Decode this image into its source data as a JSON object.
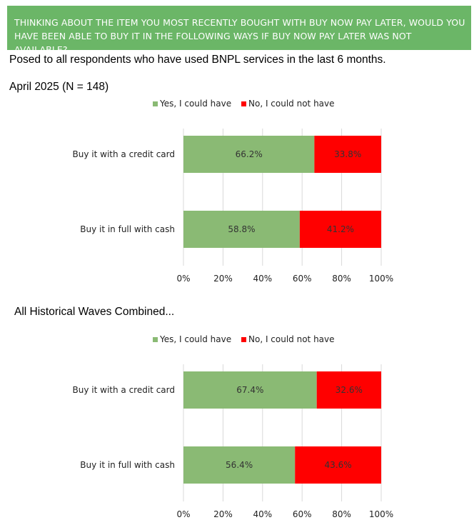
{
  "banner": {
    "text": "THINKING ABOUT THE ITEM YOU MOST RECENTLY BOUGHT WITH BUY NOW PAY LATER, WOULD YOU HAVE BEEN ABLE TO BUY IT IN THE FOLLOWING WAYS IF BUY NOW PAY LATER WAS NOT AVAILABLE?"
  },
  "subtitle": "Posed to all respondents who have used BNPL services in the last 6 months.",
  "colors": {
    "banner": "#6bb667",
    "yes": "#8aba74",
    "no": "#ff0000",
    "grid": "#d9d9d9"
  },
  "chart_data": [
    {
      "type": "bar",
      "orientation": "horizontal",
      "stacked": true,
      "title": "April 2025 (N = 148)",
      "categories": [
        "Buy it with a credit card",
        "Buy it in full with cash"
      ],
      "series": [
        {
          "name": "Yes, I could have",
          "values": [
            66.2,
            58.8
          ],
          "labels": [
            "66.2%",
            "58.8%"
          ],
          "color": "#8aba74"
        },
        {
          "name": "No, I could not have",
          "values": [
            33.8,
            41.2
          ],
          "labels": [
            "33.8%",
            "41.2%"
          ],
          "color": "#ff0000"
        }
      ],
      "xlim": [
        0,
        100
      ],
      "xticks": [
        "0%",
        "20%",
        "40%",
        "60%",
        "80%",
        "100%"
      ],
      "grid": true,
      "legend": "top"
    },
    {
      "type": "bar",
      "orientation": "horizontal",
      "stacked": true,
      "title": "All Historical Waves Combined...",
      "categories": [
        "Buy it with a credit card",
        "Buy it in full with cash"
      ],
      "series": [
        {
          "name": "Yes, I could have",
          "values": [
            67.4,
            56.4
          ],
          "labels": [
            "67.4%",
            "56.4%"
          ],
          "color": "#8aba74"
        },
        {
          "name": "No, I could not have",
          "values": [
            32.6,
            43.6
          ],
          "labels": [
            "32.6%",
            "43.6%"
          ],
          "color": "#ff0000"
        }
      ],
      "xlim": [
        0,
        100
      ],
      "xticks": [
        "0%",
        "20%",
        "40%",
        "60%",
        "80%",
        "100%"
      ],
      "grid": true,
      "legend": "top"
    }
  ]
}
